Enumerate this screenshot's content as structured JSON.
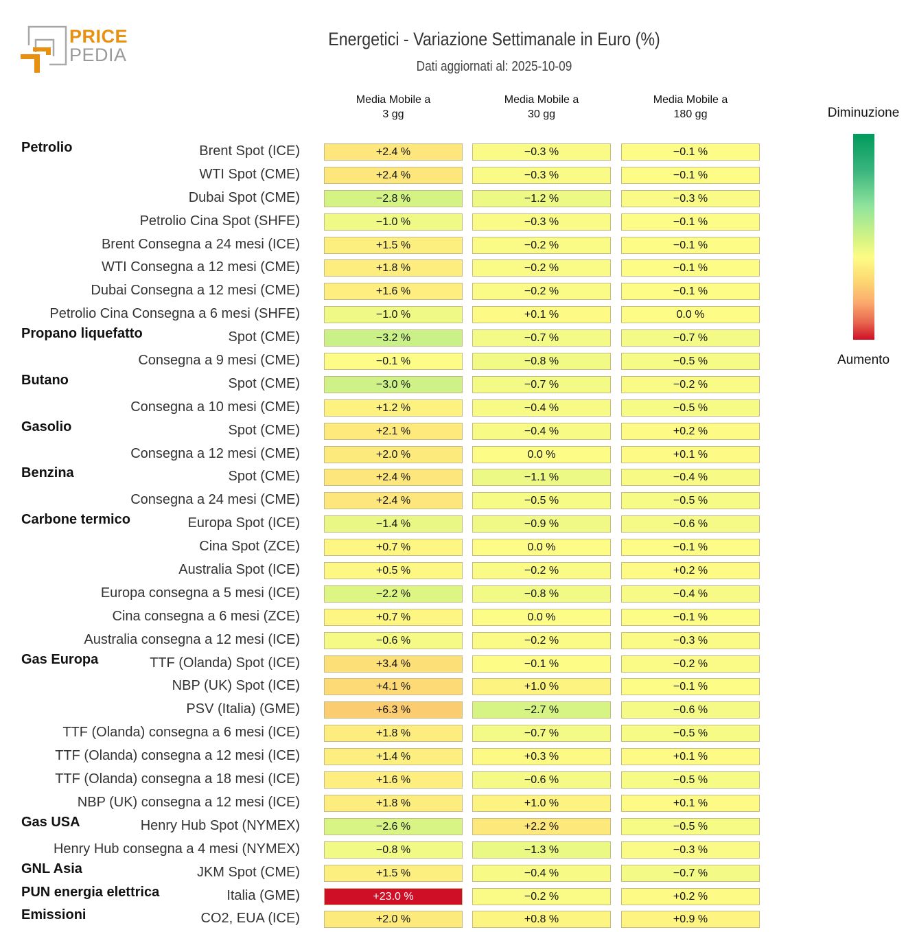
{
  "logo": {
    "part1": "PRICE",
    "part2": "PEDIA",
    "colors": {
      "orange": "#e8900f",
      "gray": "#9a9a9a"
    }
  },
  "header": {
    "title": "Energetici - Variazione Settimanale in Euro (%)",
    "subtitle": "Dati aggiornati al: 2025-10-09"
  },
  "legend": {
    "top_label": "Diminuzione",
    "bottom_label": "Aumento"
  },
  "chart_data": {
    "type": "heatmap",
    "title": "Energetici - Variazione Settimanale in Euro (%)",
    "subtitle": "Dati aggiornati al: 2025-10-09",
    "columns": [
      {
        "line1": "Media Mobile a",
        "line2": "3 gg"
      },
      {
        "line1": "Media Mobile a",
        "line2": "30 gg"
      },
      {
        "line1": "Media Mobile a",
        "line2": "180 gg"
      }
    ],
    "color_scale": {
      "negative": "green (Diminuzione)",
      "zero": "yellow",
      "positive": "red (Aumento)",
      "unit": "%"
    },
    "rows": [
      {
        "category": "Petrolio",
        "name": "Brent Spot (ICE)",
        "values": [
          2.4,
          -0.3,
          -0.1
        ]
      },
      {
        "category": "",
        "name": "WTI Spot (CME)",
        "values": [
          2.4,
          -0.3,
          -0.1
        ]
      },
      {
        "category": "",
        "name": "Dubai Spot (CME)",
        "values": [
          -2.8,
          -1.2,
          -0.3
        ]
      },
      {
        "category": "",
        "name": "Petrolio Cina Spot (SHFE)",
        "values": [
          -1.0,
          -0.3,
          -0.1
        ]
      },
      {
        "category": "",
        "name": "Brent Consegna a 24 mesi (ICE)",
        "values": [
          1.5,
          -0.2,
          -0.1
        ]
      },
      {
        "category": "",
        "name": "WTI Consegna a 12 mesi (CME)",
        "values": [
          1.8,
          -0.2,
          -0.1
        ]
      },
      {
        "category": "",
        "name": "Dubai Consegna a 12 mesi (CME)",
        "values": [
          1.6,
          -0.2,
          -0.1
        ]
      },
      {
        "category": "",
        "name": "Petrolio Cina Consegna a 6 mesi (SHFE)",
        "values": [
          -1.0,
          0.1,
          0.0
        ]
      },
      {
        "category": "Propano liquefatto",
        "name": "Spot (CME)",
        "values": [
          -3.2,
          -0.7,
          -0.7
        ]
      },
      {
        "category": "",
        "name": "Consegna a 9 mesi (CME)",
        "values": [
          -0.1,
          -0.8,
          -0.5
        ]
      },
      {
        "category": "Butano",
        "name": "Spot (CME)",
        "values": [
          -3.0,
          -0.7,
          -0.2
        ]
      },
      {
        "category": "",
        "name": "Consegna a 10 mesi (CME)",
        "values": [
          1.2,
          -0.4,
          -0.5
        ]
      },
      {
        "category": "Gasolio",
        "name": "Spot (CME)",
        "values": [
          2.1,
          -0.4,
          0.2
        ]
      },
      {
        "category": "",
        "name": "Consegna a 12 mesi (CME)",
        "values": [
          2.0,
          0.0,
          0.1
        ]
      },
      {
        "category": "Benzina",
        "name": "Spot (CME)",
        "values": [
          2.4,
          -1.1,
          -0.4
        ]
      },
      {
        "category": "",
        "name": "Consegna a 24 mesi (CME)",
        "values": [
          2.4,
          -0.5,
          -0.5
        ]
      },
      {
        "category": "Carbone termico",
        "name": "Europa Spot (ICE)",
        "values": [
          -1.4,
          -0.9,
          -0.6
        ]
      },
      {
        "category": "",
        "name": "Cina Spot (ZCE)",
        "values": [
          0.7,
          0.0,
          -0.1
        ]
      },
      {
        "category": "",
        "name": "Australia Spot (ICE)",
        "values": [
          0.5,
          -0.2,
          0.2
        ]
      },
      {
        "category": "",
        "name": "Europa consegna a 5 mesi (ICE)",
        "values": [
          -2.2,
          -0.8,
          -0.4
        ]
      },
      {
        "category": "",
        "name": "Cina consegna a 6 mesi (ZCE)",
        "values": [
          0.7,
          0.0,
          -0.1
        ]
      },
      {
        "category": "",
        "name": "Australia consegna a 12 mesi (ICE)",
        "values": [
          -0.6,
          -0.2,
          -0.3
        ]
      },
      {
        "category": "Gas Europa",
        "name": "TTF (Olanda) Spot (ICE)",
        "values": [
          3.4,
          -0.1,
          -0.2
        ]
      },
      {
        "category": "",
        "name": "NBP (UK) Spot (ICE)",
        "values": [
          4.1,
          1.0,
          -0.1
        ]
      },
      {
        "category": "",
        "name": "PSV (Italia) (GME)",
        "values": [
          6.3,
          -2.7,
          -0.6
        ]
      },
      {
        "category": "",
        "name": "TTF (Olanda) consegna a 6 mesi (ICE)",
        "values": [
          1.8,
          -0.7,
          -0.5
        ]
      },
      {
        "category": "",
        "name": "TTF (Olanda) consegna a 12 mesi (ICE)",
        "values": [
          1.4,
          0.3,
          0.1
        ]
      },
      {
        "category": "",
        "name": "TTF (Olanda) consegna a 18 mesi (ICE)",
        "values": [
          1.6,
          -0.6,
          -0.5
        ]
      },
      {
        "category": "",
        "name": "NBP (UK) consegna a 12 mesi (ICE)",
        "values": [
          1.8,
          1.0,
          0.1
        ]
      },
      {
        "category": "Gas USA",
        "name": "Henry Hub Spot (NYMEX)",
        "values": [
          -2.6,
          2.2,
          -0.5
        ]
      },
      {
        "category": "",
        "name": "Henry Hub consegna a 4 mesi (NYMEX)",
        "values": [
          -0.8,
          -1.3,
          -0.3
        ]
      },
      {
        "category": "GNL Asia",
        "name": "JKM Spot (CME)",
        "values": [
          1.5,
          -0.4,
          -0.7
        ]
      },
      {
        "category": "PUN energia elettrica",
        "name": "Italia (GME)",
        "values": [
          23.0,
          -0.2,
          0.2
        ]
      },
      {
        "category": "Emissioni",
        "name": "CO2, EUA (ICE)",
        "values": [
          2.0,
          0.8,
          0.9
        ]
      }
    ]
  }
}
